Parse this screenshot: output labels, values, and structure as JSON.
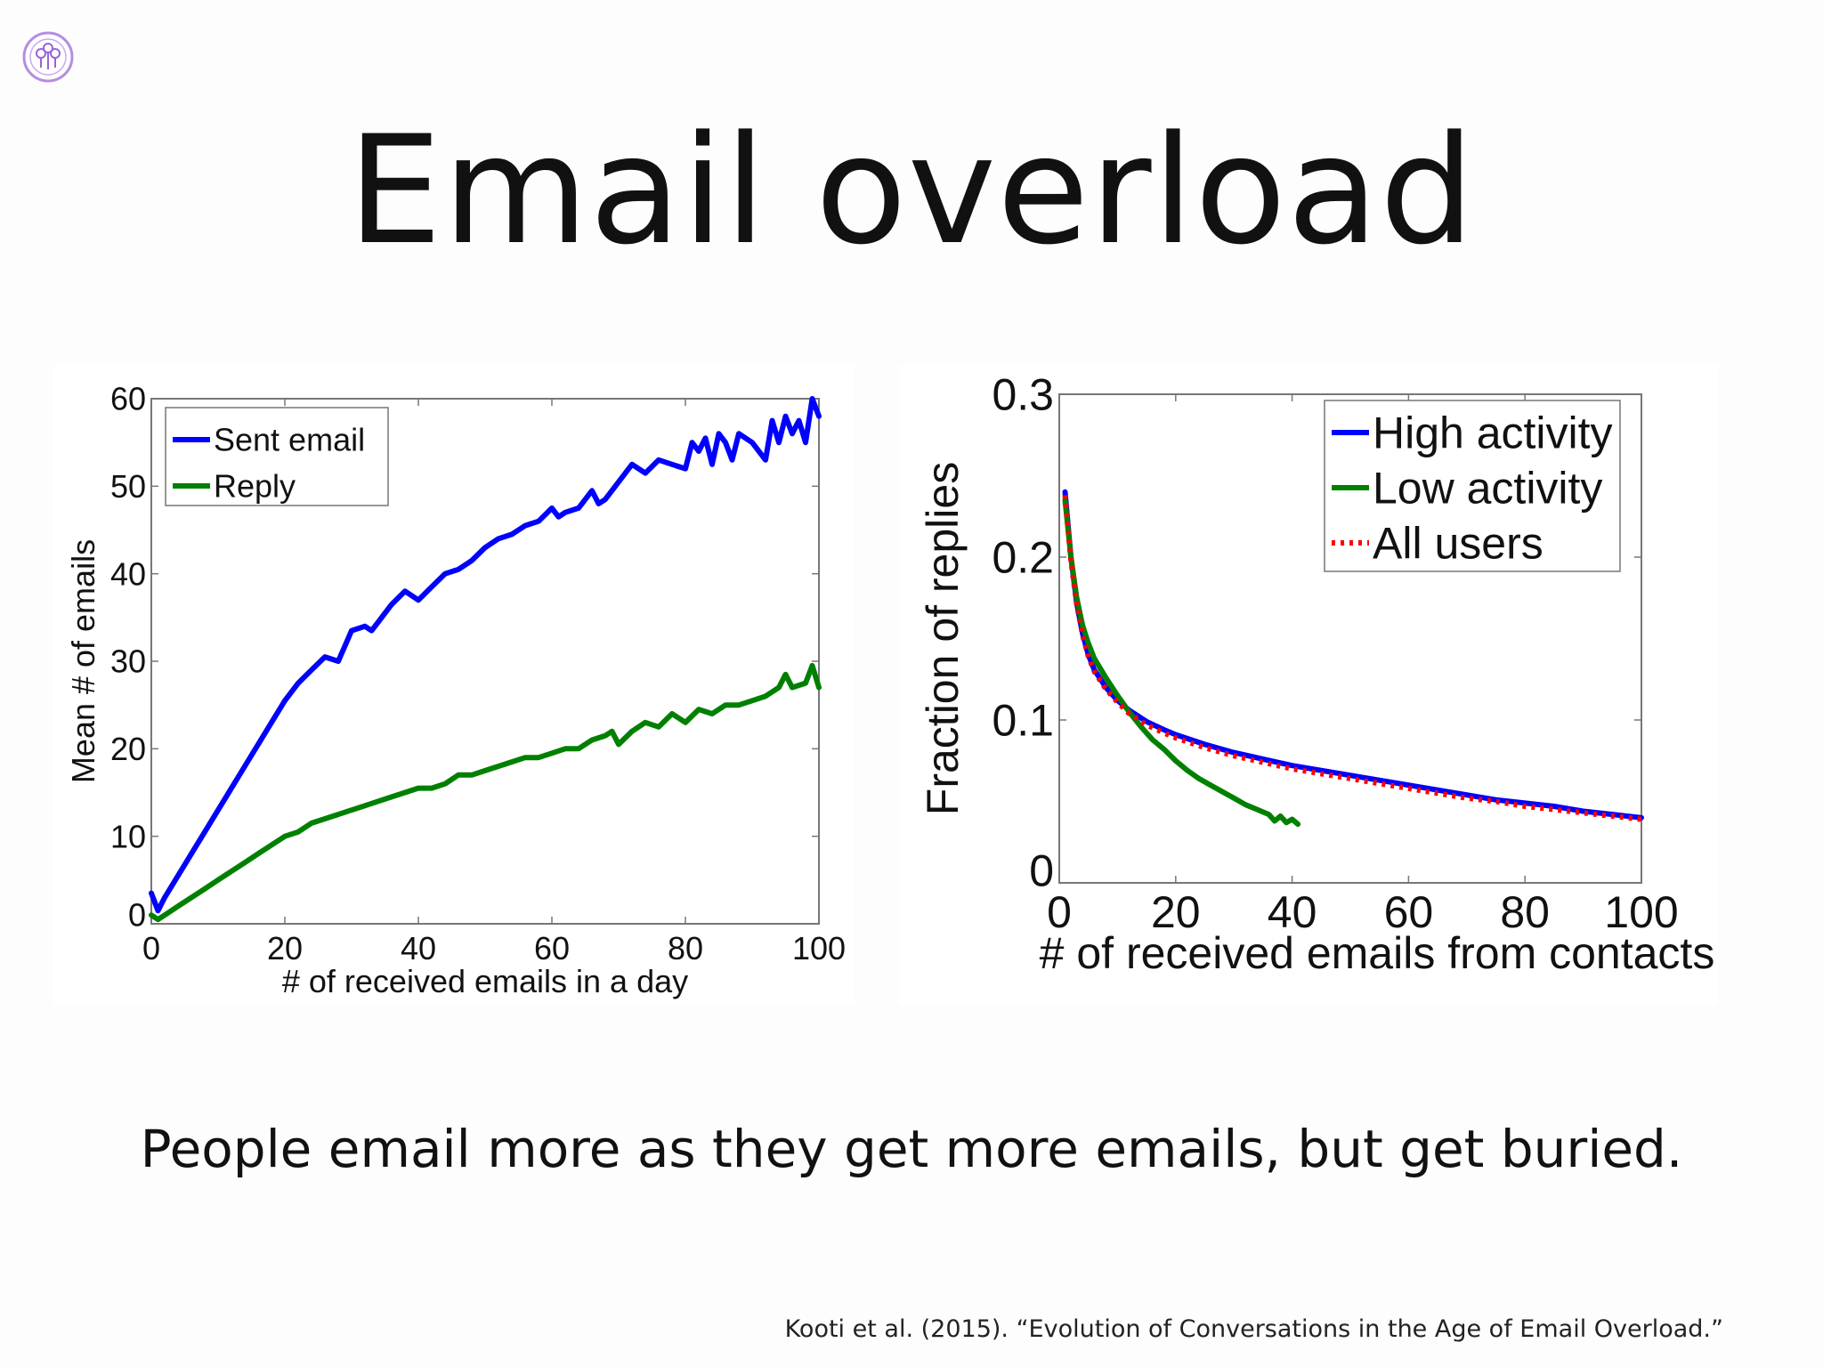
{
  "slide": {
    "title": "Email overload",
    "caption": "People email more as they get more emails, but get buried.",
    "citation": "Kooti et al. (2015). “Evolution of Conversations in the Age of Email Overload.”",
    "logo_icon": "purple-circle-logo-icon"
  },
  "chart_data": [
    {
      "type": "line",
      "xlabel": "# of received emails in a day",
      "ylabel": "Mean # of emails",
      "xlim": [
        0,
        100
      ],
      "ylim": [
        0,
        60
      ],
      "xticks": [
        0,
        20,
        40,
        60,
        80,
        100
      ],
      "yticks": [
        0,
        10,
        20,
        30,
        40,
        50,
        60
      ],
      "legend_position": "top-left",
      "grid": false,
      "series": [
        {
          "name": "Sent email",
          "color": "#0000ff",
          "x": [
            0,
            1,
            2,
            4,
            6,
            8,
            10,
            12,
            14,
            16,
            18,
            20,
            22,
            24,
            26,
            28,
            30,
            32,
            33,
            34,
            36,
            38,
            40,
            42,
            44,
            46,
            48,
            50,
            52,
            54,
            56,
            58,
            60,
            61,
            62,
            64,
            66,
            67,
            68,
            70,
            72,
            74,
            76,
            78,
            80,
            81,
            82,
            83,
            84,
            85,
            86,
            87,
            88,
            90,
            91,
            92,
            93,
            94,
            95,
            96,
            97,
            98,
            99,
            100
          ],
          "y": [
            3.5,
            1.5,
            3,
            5.5,
            8,
            10.5,
            13,
            15.5,
            18,
            20.5,
            23,
            25.5,
            27.5,
            29,
            30.5,
            30,
            33.5,
            34,
            33.5,
            34.5,
            36.5,
            38,
            37,
            38.5,
            40,
            40.5,
            41.5,
            43,
            44,
            44.5,
            45.5,
            46,
            47.5,
            46.5,
            47,
            47.5,
            49.5,
            48,
            48.5,
            50.5,
            52.5,
            51.5,
            53,
            52.5,
            52,
            55,
            54,
            55.5,
            52.5,
            56,
            55,
            53,
            56,
            55,
            54,
            53,
            57.5,
            55,
            58,
            56,
            57.5,
            55,
            60,
            58
          ]
        },
        {
          "name": "Reply",
          "color": "#008000",
          "x": [
            0,
            1,
            2,
            4,
            6,
            8,
            10,
            12,
            14,
            16,
            18,
            20,
            22,
            24,
            26,
            28,
            30,
            32,
            34,
            36,
            38,
            40,
            42,
            44,
            46,
            48,
            50,
            52,
            54,
            56,
            58,
            60,
            62,
            64,
            66,
            68,
            69,
            70,
            72,
            74,
            76,
            78,
            80,
            82,
            84,
            86,
            88,
            90,
            92,
            94,
            95,
            96,
            98,
            99,
            100
          ],
          "y": [
            1,
            0.5,
            1,
            2,
            3,
            4,
            5,
            6,
            7,
            8,
            9,
            10,
            10.5,
            11.5,
            12,
            12.5,
            13,
            13.5,
            14,
            14.5,
            15,
            15.5,
            15.5,
            16,
            17,
            17,
            17.5,
            18,
            18.5,
            19,
            19,
            19.5,
            20,
            20,
            21,
            21.5,
            22,
            20.5,
            22,
            23,
            22.5,
            24,
            23,
            24.5,
            24,
            25,
            25,
            25.5,
            26,
            27,
            28.5,
            27,
            27.5,
            29.5,
            27
          ]
        }
      ]
    },
    {
      "type": "line",
      "xlabel": "# of received emails from contacts",
      "ylabel": "Fraction of replies",
      "xlim": [
        0,
        100
      ],
      "ylim": [
        0,
        0.3
      ],
      "xticks": [
        0,
        20,
        40,
        60,
        80,
        100
      ],
      "yticks": [
        0,
        0.1,
        0.2,
        0.3
      ],
      "legend_position": "top-right",
      "grid": false,
      "series": [
        {
          "name": "High activity",
          "color": "#0000ff",
          "x": [
            1,
            2,
            3,
            4,
            5,
            6,
            8,
            10,
            12,
            15,
            18,
            20,
            25,
            30,
            35,
            40,
            45,
            50,
            55,
            60,
            65,
            70,
            75,
            80,
            85,
            90,
            95,
            100
          ],
          "y": [
            0.24,
            0.2,
            0.172,
            0.153,
            0.14,
            0.131,
            0.12,
            0.112,
            0.106,
            0.099,
            0.094,
            0.091,
            0.085,
            0.08,
            0.076,
            0.072,
            0.069,
            0.066,
            0.063,
            0.06,
            0.057,
            0.054,
            0.051,
            0.049,
            0.047,
            0.044,
            0.042,
            0.04
          ]
        },
        {
          "name": "Low activity",
          "color": "#008000",
          "x": [
            1,
            2,
            3,
            4,
            5,
            6,
            8,
            10,
            12,
            14,
            16,
            18,
            20,
            22,
            24,
            26,
            28,
            30,
            32,
            34,
            36,
            37,
            38,
            39,
            40,
            41
          ],
          "y": [
            0.235,
            0.2,
            0.175,
            0.158,
            0.147,
            0.138,
            0.126,
            0.115,
            0.105,
            0.096,
            0.088,
            0.082,
            0.075,
            0.069,
            0.064,
            0.06,
            0.056,
            0.052,
            0.048,
            0.045,
            0.042,
            0.038,
            0.041,
            0.037,
            0.039,
            0.036
          ]
        },
        {
          "name": "All users",
          "color": "#ff0000",
          "dash": "dotted",
          "x": [
            1,
            2,
            3,
            4,
            5,
            6,
            8,
            10,
            12,
            15,
            18,
            20,
            25,
            30,
            35,
            40,
            45,
            50,
            55,
            60,
            65,
            70,
            75,
            80,
            85,
            90,
            95,
            100
          ],
          "y": [
            0.238,
            0.198,
            0.171,
            0.152,
            0.139,
            0.13,
            0.119,
            0.111,
            0.104,
            0.097,
            0.092,
            0.089,
            0.083,
            0.078,
            0.074,
            0.07,
            0.067,
            0.064,
            0.061,
            0.058,
            0.055,
            0.052,
            0.05,
            0.047,
            0.045,
            0.043,
            0.041,
            0.039
          ]
        }
      ]
    }
  ]
}
